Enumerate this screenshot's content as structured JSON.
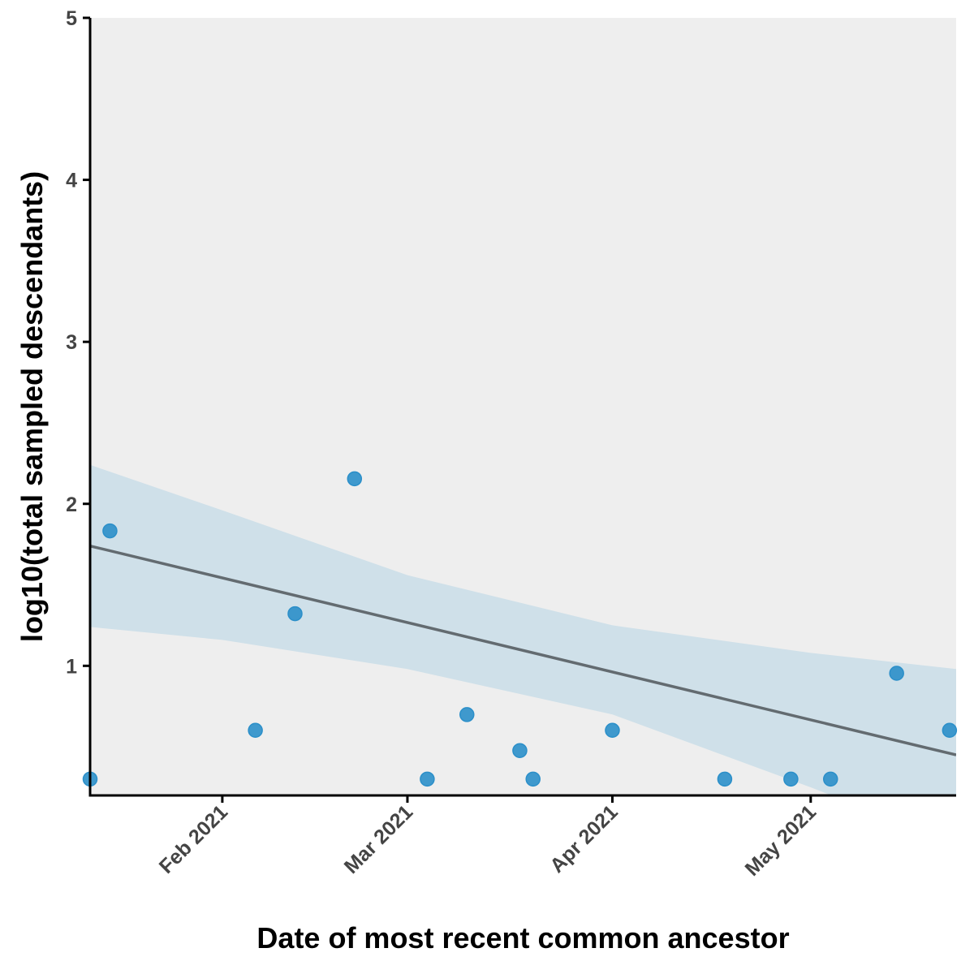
{
  "chart_data": {
    "type": "scatter",
    "title": "",
    "xlabel": "Date of most recent common ancestor",
    "ylabel": "log10(total sampled descendants)",
    "x_type": "date",
    "xlim": [
      "2021-01-12",
      "2021-05-23"
    ],
    "ylim": [
      0.2,
      5
    ],
    "x_ticks": [
      {
        "value": "2021-02-01",
        "label": "Feb 2021"
      },
      {
        "value": "2021-03-01",
        "label": "Mar 2021"
      },
      {
        "value": "2021-04-01",
        "label": "Apr 2021"
      },
      {
        "value": "2021-05-01",
        "label": "May 2021"
      }
    ],
    "y_ticks": [
      {
        "value": 1,
        "label": "1"
      },
      {
        "value": 2,
        "label": "2"
      },
      {
        "value": 3,
        "label": "3"
      },
      {
        "value": 4,
        "label": "4"
      },
      {
        "value": 5,
        "label": "5"
      }
    ],
    "points": [
      {
        "x": "2021-01-12",
        "y": 0.301
      },
      {
        "x": "2021-01-15",
        "y": 1.833
      },
      {
        "x": "2021-02-06",
        "y": 0.602
      },
      {
        "x": "2021-02-12",
        "y": 1.322
      },
      {
        "x": "2021-02-21",
        "y": 2.155
      },
      {
        "x": "2021-03-04",
        "y": 0.301
      },
      {
        "x": "2021-03-10",
        "y": 0.699
      },
      {
        "x": "2021-03-18",
        "y": 0.477
      },
      {
        "x": "2021-03-20",
        "y": 0.301
      },
      {
        "x": "2021-04-01",
        "y": 0.602
      },
      {
        "x": "2021-04-18",
        "y": 0.301
      },
      {
        "x": "2021-04-28",
        "y": 0.301
      },
      {
        "x": "2021-05-04",
        "y": 0.301
      },
      {
        "x": "2021-05-14",
        "y": 0.954
      },
      {
        "x": "2021-05-22",
        "y": 0.602
      }
    ],
    "trend_line": [
      {
        "x": "2021-01-12",
        "y": 1.74
      },
      {
        "x": "2021-05-23",
        "y": 0.45
      }
    ],
    "confidence_band": [
      {
        "x": "2021-01-12",
        "lower": 1.24,
        "upper": 2.24
      },
      {
        "x": "2021-02-01",
        "lower": 1.16,
        "upper": 1.96
      },
      {
        "x": "2021-03-01",
        "lower": 0.98,
        "upper": 1.56
      },
      {
        "x": "2021-04-01",
        "lower": 0.7,
        "upper": 1.25
      },
      {
        "x": "2021-05-01",
        "lower": 0.25,
        "upper": 1.08
      },
      {
        "x": "2021-05-23",
        "lower": -0.1,
        "upper": 0.98
      }
    ],
    "grid": false,
    "legend": "none",
    "colors": {
      "panel_background": "#eeeeee",
      "point": "#2b8fc9",
      "trend_line": "#636b70",
      "band": "#cfe0e9",
      "axis": "#000000"
    }
  }
}
